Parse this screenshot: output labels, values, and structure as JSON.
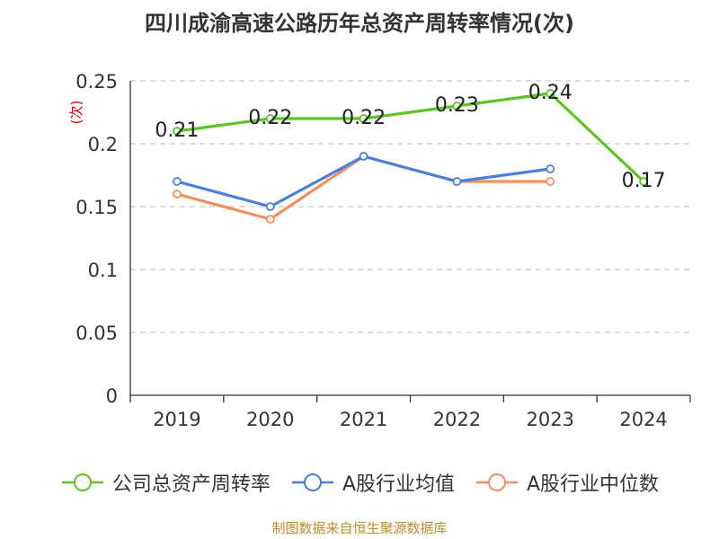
{
  "title": "四川成渝高速公路历年总资产周转率情况(次)",
  "source": "制图数据来自恒生聚源数据库",
  "chart_data": {
    "type": "line",
    "title": "四川成渝高速公路历年总资产周转率情况(次)",
    "xlabel": "",
    "ylabel": "(次)",
    "categories": [
      "2019",
      "2020",
      "2021",
      "2022",
      "2023",
      "2024"
    ],
    "ylim": [
      0,
      0.25
    ],
    "yticks": [
      0,
      0.05,
      0.1,
      0.15,
      0.2,
      0.25
    ],
    "ytick_labels": [
      "0",
      "0.05",
      "0.1",
      "0.15",
      "0.2",
      "0.25"
    ],
    "grid": true,
    "legend_position": "bottom",
    "series": [
      {
        "name": "公司总资产周转率",
        "color": "#5cc424",
        "values": [
          0.21,
          0.22,
          0.22,
          0.23,
          0.24,
          0.17
        ],
        "labels": [
          "0.21",
          "0.22",
          "0.22",
          "0.23",
          "0.24",
          "0.17"
        ],
        "show_labels": true
      },
      {
        "name": "A股行业均值",
        "color": "#4b7fdb",
        "values": [
          0.17,
          0.15,
          0.19,
          0.17,
          0.18,
          null
        ],
        "show_labels": false
      },
      {
        "name": "A股行业中位数",
        "color": "#f58d5c",
        "values": [
          0.16,
          0.14,
          0.19,
          0.17,
          0.17,
          null
        ],
        "show_labels": false
      }
    ]
  }
}
